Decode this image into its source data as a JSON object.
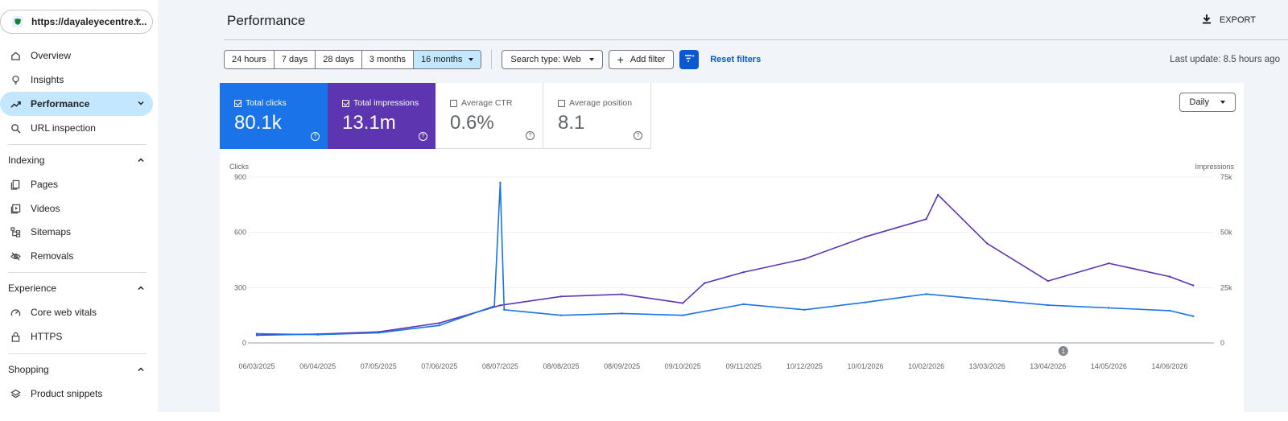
{
  "sidebar": {
    "property_url": "https://dayaleyecentre.i...",
    "items": [
      {
        "label": "Overview",
        "icon": "home-icon"
      },
      {
        "label": "Insights",
        "icon": "lightbulb-icon"
      },
      {
        "label": "Performance",
        "icon": "trending-up-icon",
        "active": true
      },
      {
        "label": "URL inspection",
        "icon": "search-icon"
      }
    ],
    "sections": [
      {
        "title": "Indexing",
        "items": [
          {
            "label": "Pages",
            "icon": "pages-icon"
          },
          {
            "label": "Videos",
            "icon": "video-icon"
          },
          {
            "label": "Sitemaps",
            "icon": "sitemap-icon"
          },
          {
            "label": "Removals",
            "icon": "eye-off-icon"
          }
        ]
      },
      {
        "title": "Experience",
        "items": [
          {
            "label": "Core web vitals",
            "icon": "gauge-icon"
          },
          {
            "label": "HTTPS",
            "icon": "lock-icon"
          }
        ]
      },
      {
        "title": "Shopping",
        "items": [
          {
            "label": "Product snippets",
            "icon": "layers-icon"
          }
        ]
      }
    ]
  },
  "header": {
    "title": "Performance",
    "export_label": "EXPORT"
  },
  "filters": {
    "ranges": [
      "24 hours",
      "7 days",
      "28 days",
      "3 months",
      "16 months"
    ],
    "selected_range": "16 months",
    "search_type": "Search type: Web",
    "add_filter": "Add filter",
    "reset": "Reset filters",
    "last_update": "Last update: 8.5 hours ago"
  },
  "metrics": [
    {
      "label": "Total clicks",
      "value": "80.1k",
      "checked": true,
      "color": "#1a73e8"
    },
    {
      "label": "Total impressions",
      "value": "13.1m",
      "checked": true,
      "color": "#5e35b1"
    },
    {
      "label": "Average CTR",
      "value": "0.6%",
      "checked": false
    },
    {
      "label": "Average position",
      "value": "8.1",
      "checked": false
    }
  ],
  "granularity": "Daily",
  "chart_data": {
    "type": "line",
    "y_left_label": "Clicks",
    "y_right_label": "Impressions",
    "y_left_ticks": [
      "900",
      "600",
      "300",
      "0"
    ],
    "y_right_ticks": [
      "75k",
      "50k",
      "25k",
      "0"
    ],
    "ylim_left": [
      0,
      900
    ],
    "ylim_right": [
      0,
      75000
    ],
    "x_labels": [
      "06/03/2025",
      "06/04/2025",
      "07/05/2025",
      "07/06/2025",
      "08/07/2025",
      "08/08/2025",
      "08/09/2025",
      "09/10/2025",
      "09/11/2025",
      "10/12/2025",
      "10/01/2026",
      "10/02/2026",
      "13/03/2026",
      "13/04/2026",
      "14/05/2026",
      "14/06/2026"
    ],
    "annotation": "1",
    "annotation_date": "13/04/2026",
    "series": [
      {
        "name": "Clicks",
        "axis": "left",
        "color": "#1a73e8",
        "x": [
          "06/03/2025",
          "06/04/2025",
          "07/05/2025",
          "07/06/2025",
          "05/07/2025",
          "08/07/2025",
          "10/07/2025",
          "08/08/2025",
          "08/09/2025",
          "09/10/2025",
          "09/11/2025",
          "10/12/2025",
          "10/01/2026",
          "10/02/2026",
          "13/03/2026",
          "13/04/2026",
          "14/05/2026",
          "14/06/2026",
          "26/06/2026"
        ],
        "values": [
          50,
          45,
          55,
          95,
          200,
          870,
          180,
          150,
          160,
          150,
          210,
          180,
          220,
          265,
          235,
          205,
          190,
          175,
          145
        ]
      },
      {
        "name": "Impressions",
        "axis": "right",
        "color": "#5e35b1",
        "x": [
          "06/03/2025",
          "06/04/2025",
          "07/05/2025",
          "07/06/2025",
          "08/07/2025",
          "08/08/2025",
          "08/09/2025",
          "09/10/2025",
          "20/10/2025",
          "09/11/2025",
          "10/12/2025",
          "10/01/2026",
          "10/02/2026",
          "16/02/2026",
          "13/03/2026",
          "13/04/2026",
          "14/05/2026",
          "14/06/2026",
          "26/06/2026"
        ],
        "values": [
          3500,
          4000,
          5000,
          9000,
          17000,
          21000,
          22000,
          18000,
          27000,
          32000,
          38000,
          48000,
          56000,
          67000,
          45000,
          28000,
          36000,
          30000,
          26000
        ]
      }
    ]
  }
}
